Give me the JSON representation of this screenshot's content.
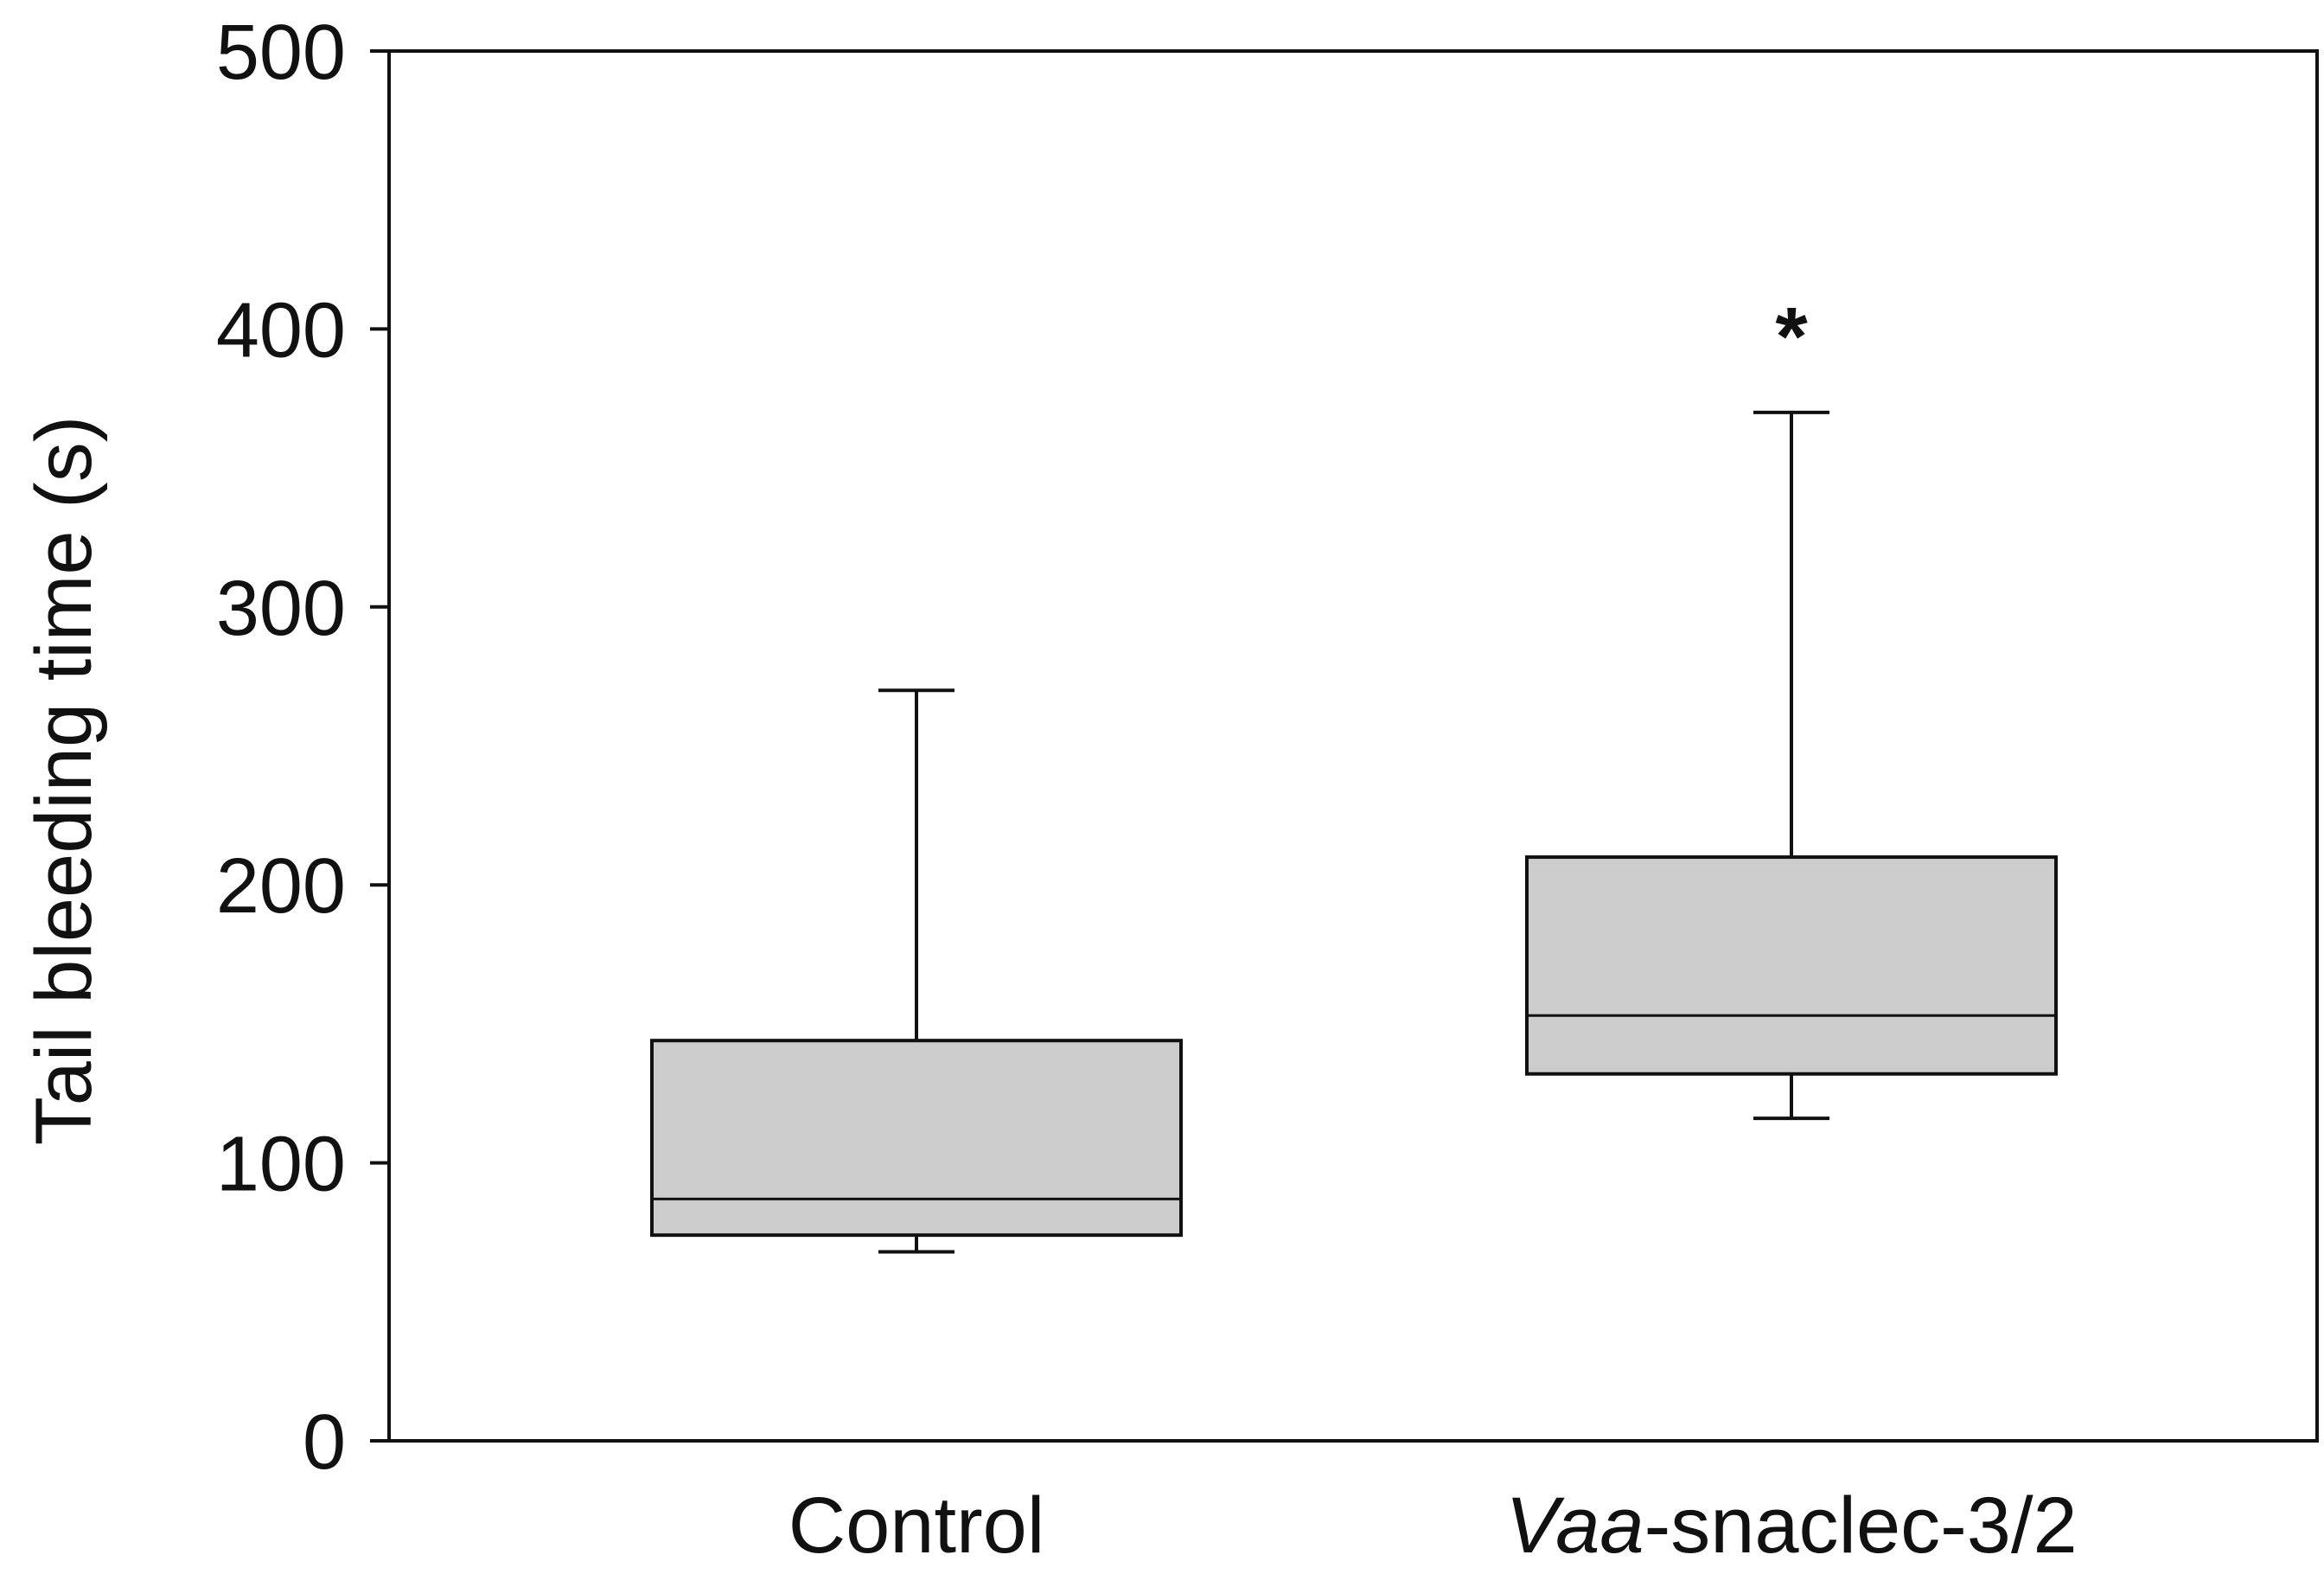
{
  "chart_data": {
    "type": "box",
    "title": "",
    "xlabel": "",
    "ylabel": "Tail bleeding time (s)",
    "ylim": [
      0,
      500
    ],
    "yticks": [
      0,
      100,
      200,
      300,
      400,
      500
    ],
    "ytick_labels": [
      "0",
      "100",
      "200",
      "300",
      "400",
      "500"
    ],
    "grid": false,
    "legend": "none",
    "box_fill": "#cccccc",
    "line_color": "#111111",
    "categories": [
      {
        "label": "Control",
        "label_parts": [
          {
            "text": "Control",
            "italic": false
          }
        ],
        "whisker_low": 68,
        "q1": 74,
        "median": 87,
        "q3": 144,
        "whisker_high": 270,
        "annotation": ""
      },
      {
        "label": "Vaa-snaclec-3/2",
        "label_parts": [
          {
            "text": "Vaa",
            "italic": true
          },
          {
            "text": "-snaclec-3/2",
            "italic": false
          }
        ],
        "whisker_low": 116,
        "q1": 132,
        "median": 153,
        "q3": 210,
        "whisker_high": 370,
        "annotation": "*"
      }
    ]
  }
}
